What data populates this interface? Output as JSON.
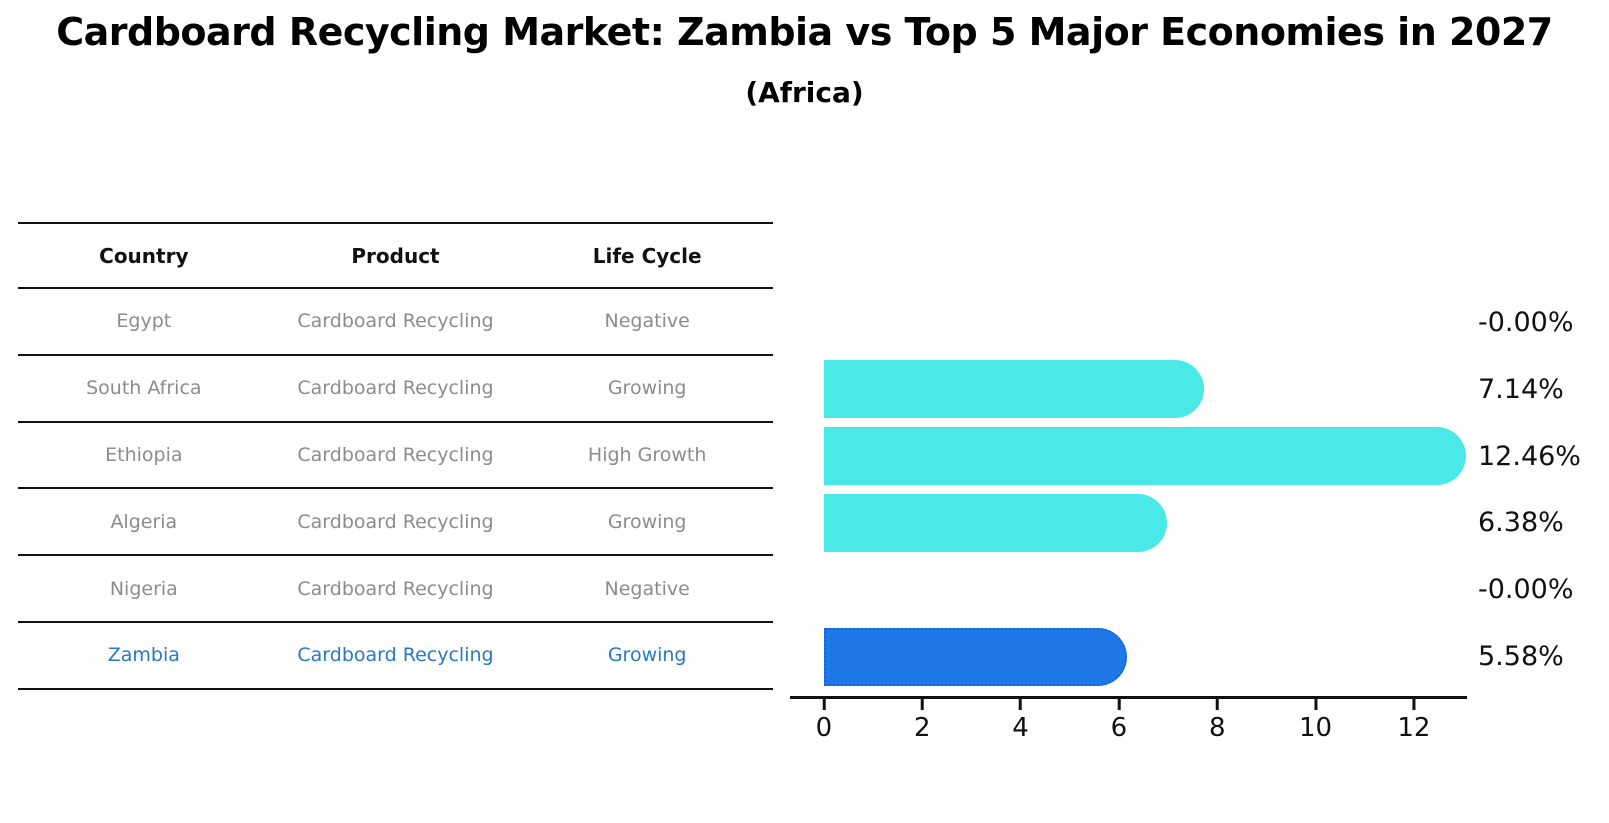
{
  "header": {
    "title": "Cardboard Recycling Market: Zambia vs Top 5 Major Economies in 2027",
    "subtitle": "(Africa)"
  },
  "table": {
    "headers": [
      "Country",
      "Product",
      "Life Cycle"
    ],
    "rows": [
      {
        "country": "Egypt",
        "product": "Cardboard Recycling",
        "life_cycle": "Negative",
        "highlight": false
      },
      {
        "country": "South Africa",
        "product": "Cardboard Recycling",
        "life_cycle": "Growing",
        "highlight": false
      },
      {
        "country": "Ethiopia",
        "product": "Cardboard Recycling",
        "life_cycle": "High Growth",
        "highlight": false
      },
      {
        "country": "Algeria",
        "product": "Cardboard Recycling",
        "life_cycle": "Growing",
        "highlight": false
      },
      {
        "country": "Nigeria",
        "product": "Cardboard Recycling",
        "life_cycle": "Negative",
        "highlight": false
      },
      {
        "country": "Zambia",
        "product": "Cardboard Recycling",
        "life_cycle": "Growing",
        "highlight": true
      }
    ]
  },
  "chart_data": {
    "type": "bar",
    "orientation": "horizontal",
    "categories": [
      "Egypt",
      "South Africa",
      "Ethiopia",
      "Algeria",
      "Nigeria",
      "Zambia"
    ],
    "values": [
      -0.0,
      7.14,
      12.46,
      6.38,
      -0.0,
      5.58
    ],
    "value_labels": [
      "-0.00%",
      "7.14%",
      "12.46%",
      "6.38%",
      "-0.00%",
      "5.58%"
    ],
    "xticks": [
      0,
      2,
      4,
      6,
      8,
      10,
      12
    ],
    "xtick_labels": [
      "0",
      "2",
      "4",
      "6",
      "8",
      "10",
      "12"
    ],
    "xlim": [
      -0.69,
      13.08
    ],
    "grid": false,
    "legend": null,
    "bar_color": "#4AE9E7",
    "highlight_bar_color": "#1E78E8",
    "highlight_border_color": "#1565D6",
    "highlight_index": 5
  },
  "colors": {
    "row_text": "#8c8c8c",
    "highlight_text": "#2878C8",
    "axis": "#111111",
    "title_text": "#000000"
  }
}
